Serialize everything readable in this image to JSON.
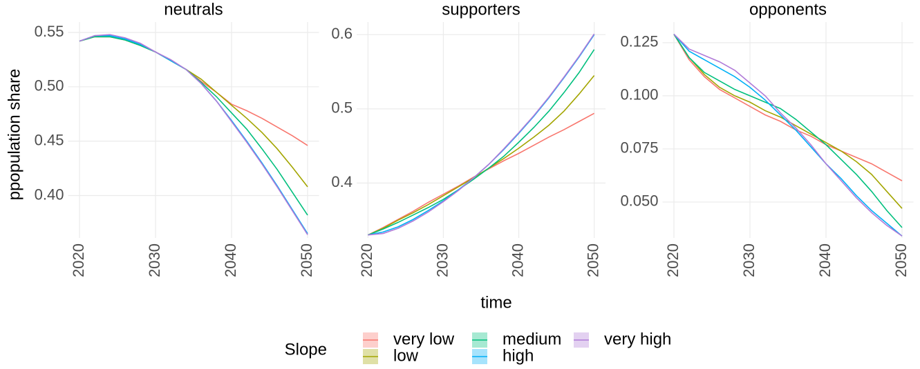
{
  "legend": {
    "title": "Slope",
    "position": "bottom"
  },
  "chart_data": [
    {
      "type": "line",
      "title": "neutrals",
      "ylabel": "ppopulation share",
      "x": [
        2020,
        2022,
        2024,
        2026,
        2028,
        2030,
        2032,
        2034,
        2036,
        2038,
        2040,
        2042,
        2044,
        2046,
        2048,
        2050
      ],
      "xlim": [
        2018.5,
        2051.5
      ],
      "xticks": [
        2020,
        2030,
        2040,
        2050
      ],
      "ylim": [
        0.361,
        0.5595
      ],
      "yticks": [
        {
          "value": 0.4,
          "label": "0.40"
        },
        0.45,
        {
          "value": 0.5,
          "label": "0.50"
        },
        0.55
      ],
      "grid": true,
      "series": [
        {
          "name": "very low",
          "color": "#F8766D",
          "values": [
            0.542,
            0.546,
            0.546,
            0.543,
            0.538,
            0.532,
            0.524,
            0.516,
            0.505,
            0.495,
            0.484,
            0.478,
            0.471,
            0.463,
            0.455,
            0.446
          ]
        },
        {
          "name": "low",
          "color": "#A3A500",
          "values": [
            0.542,
            0.546,
            0.546,
            0.543,
            0.538,
            0.532,
            0.524,
            0.516,
            0.507,
            0.495,
            0.483,
            0.471,
            0.458,
            0.443,
            0.426,
            0.408
          ]
        },
        {
          "name": "medium",
          "color": "#00BF7D",
          "values": [
            0.542,
            0.546,
            0.546,
            0.543,
            0.538,
            0.532,
            0.524,
            0.516,
            0.504,
            0.491,
            0.476,
            0.461,
            0.443,
            0.424,
            0.403,
            0.382
          ]
        },
        {
          "name": "high",
          "color": "#00B0F6",
          "values": [
            0.542,
            0.547,
            0.547,
            0.544,
            0.539,
            0.532,
            0.524,
            0.516,
            0.503,
            0.487,
            0.469,
            0.45,
            0.43,
            0.409,
            0.387,
            0.365
          ]
        },
        {
          "name": "very high",
          "color": "#B07AD8",
          "values": [
            0.542,
            0.547,
            0.548,
            0.545,
            0.54,
            0.532,
            0.525,
            0.516,
            0.503,
            0.487,
            0.468,
            0.449,
            0.429,
            0.408,
            0.386,
            0.364
          ]
        }
      ]
    },
    {
      "type": "line",
      "title": "supporters",
      "xlabel": "time",
      "x": [
        2020,
        2022,
        2024,
        2026,
        2028,
        2030,
        2032,
        2034,
        2036,
        2038,
        2040,
        2042,
        2044,
        2046,
        2048,
        2050
      ],
      "xlim": [
        2018.5,
        2051.5
      ],
      "xticks": [
        2020,
        2030,
        2040,
        2050
      ],
      "ylim": [
        0.326,
        0.617
      ],
      "yticks": [
        0.4,
        0.5,
        0.6
      ],
      "grid": true,
      "series": [
        {
          "color": "#F8766D",
          "values": [
            0.33,
            0.34,
            0.351,
            0.362,
            0.374,
            0.385,
            0.396,
            0.408,
            0.419,
            0.43,
            0.44,
            0.451,
            0.462,
            0.472,
            0.483,
            0.494
          ]
        },
        {
          "color": "#A3A500",
          "values": [
            0.33,
            0.339,
            0.35,
            0.36,
            0.371,
            0.383,
            0.395,
            0.407,
            0.42,
            0.433,
            0.447,
            0.462,
            0.478,
            0.497,
            0.52,
            0.545
          ]
        },
        {
          "color": "#00BF7D",
          "values": [
            0.33,
            0.338,
            0.347,
            0.357,
            0.367,
            0.378,
            0.391,
            0.405,
            0.42,
            0.436,
            0.455,
            0.475,
            0.497,
            0.522,
            0.549,
            0.58
          ]
        },
        {
          "color": "#00B0F6",
          "values": [
            0.33,
            0.334,
            0.341,
            0.351,
            0.363,
            0.376,
            0.391,
            0.407,
            0.425,
            0.445,
            0.467,
            0.49,
            0.515,
            0.542,
            0.57,
            0.6
          ]
        },
        {
          "color": "#B07AD8",
          "values": [
            0.33,
            0.332,
            0.339,
            0.349,
            0.361,
            0.375,
            0.39,
            0.407,
            0.425,
            0.446,
            0.468,
            0.491,
            0.516,
            0.543,
            0.571,
            0.601
          ]
        }
      ]
    },
    {
      "type": "line",
      "title": "opponents",
      "x": [
        2020,
        2022,
        2024,
        2026,
        2028,
        2030,
        2032,
        2034,
        2036,
        2038,
        2040,
        2042,
        2044,
        2046,
        2048,
        2050
      ],
      "xlim": [
        2018.5,
        2051.5
      ],
      "xticks": [
        2020,
        2030,
        2040,
        2050
      ],
      "ylim": [
        0.0331,
        0.1347
      ],
      "yticks": [
        {
          "value": 0.05,
          "label": "0.050"
        },
        0.075,
        {
          "value": 0.1,
          "label": "0.100"
        },
        0.125
      ],
      "grid": true,
      "series": [
        {
          "color": "#F8766D",
          "values": [
            0.129,
            0.117,
            0.109,
            0.103,
            0.099,
            0.095,
            0.091,
            0.088,
            0.084,
            0.081,
            0.077,
            0.074,
            0.071,
            0.068,
            0.064,
            0.06
          ]
        },
        {
          "color": "#A3A500",
          "values": [
            0.129,
            0.118,
            0.11,
            0.104,
            0.1,
            0.097,
            0.093,
            0.09,
            0.086,
            0.082,
            0.078,
            0.074,
            0.069,
            0.063,
            0.055,
            0.047
          ]
        },
        {
          "color": "#00BF7D",
          "values": [
            0.129,
            0.118,
            0.111,
            0.107,
            0.103,
            0.1,
            0.097,
            0.094,
            0.089,
            0.083,
            0.077,
            0.07,
            0.063,
            0.055,
            0.046,
            0.038
          ]
        },
        {
          "color": "#00B0F6",
          "values": [
            0.129,
            0.121,
            0.117,
            0.113,
            0.109,
            0.104,
            0.098,
            0.091,
            0.084,
            0.076,
            0.068,
            0.061,
            0.053,
            0.046,
            0.04,
            0.034
          ]
        },
        {
          "color": "#B07AD8",
          "values": [
            0.129,
            0.122,
            0.119,
            0.116,
            0.112,
            0.106,
            0.1,
            0.092,
            0.085,
            0.077,
            0.068,
            0.06,
            0.052,
            0.045,
            0.039,
            0.034
          ]
        }
      ]
    }
  ]
}
